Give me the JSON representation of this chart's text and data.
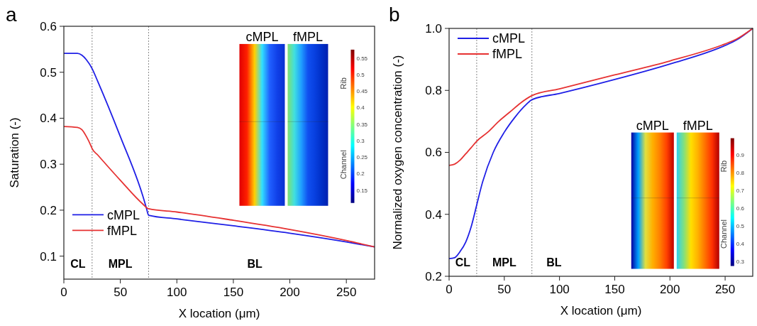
{
  "chart_data": [
    {
      "type": "line",
      "title": "a",
      "xlabel": "X location (μm)",
      "ylabel": "Saturation (-)",
      "xlim": [
        0,
        275
      ],
      "xticks": [
        0,
        50,
        100,
        150,
        200,
        250
      ],
      "ylim": [
        0.05,
        0.6
      ],
      "yticks": [
        0.1,
        0.2,
        0.3,
        0.4,
        0.5,
        0.6
      ],
      "legend": "bottom left",
      "grid": false,
      "line_style": "solid",
      "marker": "none",
      "series": [
        {
          "name": "cMPL",
          "color": "#1f1fe6",
          "x": [
            0,
            12,
            16,
            20,
            25,
            30,
            50,
            70,
            73,
            75,
            100,
            150,
            200,
            250,
            275
          ],
          "values": [
            0.541,
            0.541,
            0.537,
            0.527,
            0.508,
            0.48,
            0.36,
            0.23,
            0.205,
            0.189,
            0.181,
            0.166,
            0.15,
            0.131,
            0.12
          ]
        },
        {
          "name": "fMPL",
          "color": "#e63232",
          "x": [
            0,
            12,
            16,
            20,
            24,
            25,
            30,
            50,
            70,
            75,
            100,
            150,
            200,
            250,
            275
          ],
          "values": [
            0.382,
            0.38,
            0.375,
            0.36,
            0.34,
            0.334,
            0.32,
            0.265,
            0.213,
            0.203,
            0.196,
            0.178,
            0.158,
            0.134,
            0.12
          ]
        }
      ],
      "ref_lines": [
        {
          "axis": "x",
          "value": 25,
          "color": "#888888",
          "line_style": "dotted"
        },
        {
          "axis": "x",
          "value": 75,
          "color": "#888888",
          "line_style": "dotted"
        }
      ],
      "annotations": [
        "CL",
        "MPL",
        "BL",
        "cMPL",
        "fMPL",
        "Rib",
        "Channel",
        "0.15",
        "0.2",
        "0.25",
        "0.3",
        "0.35",
        "0.4",
        "0.45",
        "0.5",
        "0.55"
      ]
    },
    {
      "type": "line",
      "title": "b",
      "xlabel": "X location (μm)",
      "ylabel": "Normalized oxygen concentration (-)",
      "xlim": [
        0,
        275
      ],
      "xticks": [
        0,
        50,
        100,
        150,
        200,
        250
      ],
      "ylim": [
        0.2,
        1.0
      ],
      "yticks": [
        {
          "value": 0.2,
          "label": "0.2"
        },
        {
          "value": 0.4,
          "label": "0.4"
        },
        {
          "value": 0.6,
          "label": "0.6"
        },
        {
          "value": 0.8,
          "label": "0.8"
        },
        {
          "value": 1.0,
          "label": "1.0"
        }
      ],
      "legend": "top left",
      "grid": false,
      "line_style": "solid",
      "marker": "none",
      "series": [
        {
          "name": "cMPL",
          "color": "#1f1fe6",
          "x": [
            0,
            5,
            10,
            15,
            20,
            25,
            30,
            40,
            50,
            60,
            70,
            75,
            100,
            150,
            200,
            250,
            260,
            275
          ],
          "values": [
            0.257,
            0.26,
            0.28,
            0.31,
            0.36,
            0.43,
            0.5,
            0.6,
            0.665,
            0.715,
            0.755,
            0.77,
            0.79,
            0.835,
            0.885,
            0.945,
            0.962,
            1.0
          ]
        },
        {
          "name": "fMPL",
          "color": "#e63232",
          "x": [
            0,
            5,
            10,
            15,
            20,
            25,
            35,
            45,
            55,
            65,
            75,
            100,
            150,
            200,
            250,
            260,
            275
          ],
          "values": [
            0.558,
            0.562,
            0.575,
            0.595,
            0.615,
            0.636,
            0.665,
            0.7,
            0.73,
            0.76,
            0.783,
            0.805,
            0.85,
            0.895,
            0.95,
            0.965,
            1.0
          ]
        }
      ],
      "ref_lines": [
        {
          "axis": "x",
          "value": 25,
          "color": "#888888",
          "line_style": "dotted"
        },
        {
          "axis": "x",
          "value": 75,
          "color": "#888888",
          "line_style": "dotted"
        }
      ],
      "annotations": [
        "CL",
        "MPL",
        "BL",
        "cMPL",
        "fMPL",
        "Rib",
        "Channel",
        "0.3",
        "0.4",
        "0.5",
        "0.6",
        "0.7",
        "0.8",
        "0.9"
      ]
    }
  ]
}
